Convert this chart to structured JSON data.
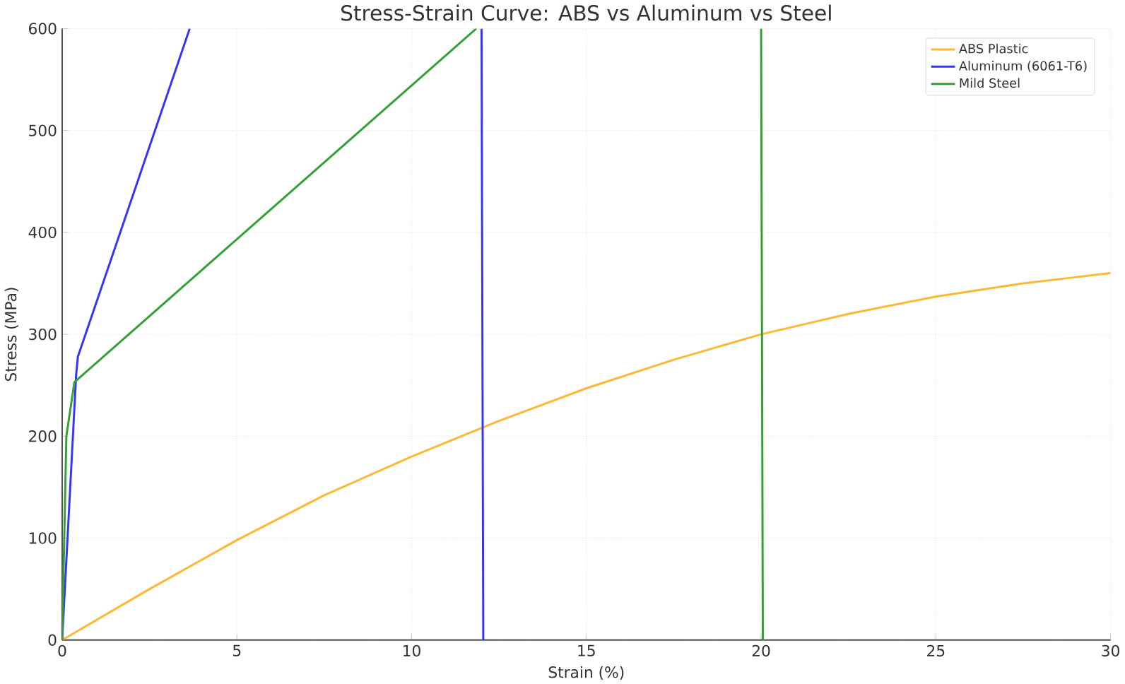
{
  "chart_data": {
    "type": "line",
    "title": "Stress-Strain Curve: ABS vs Aluminum vs Steel",
    "xlabel": "Strain (%)",
    "ylabel": "Stress (MPa)",
    "xlim": [
      0,
      30
    ],
    "ylim": [
      0,
      600
    ],
    "xticks": [
      0,
      5,
      10,
      15,
      20,
      25,
      30
    ],
    "yticks": [
      0,
      100,
      200,
      300,
      400,
      500,
      600
    ],
    "grid": true,
    "legend": "top right",
    "line_style": "solid",
    "marker": "none",
    "series": [
      {
        "name": "ABS Plastic",
        "color": "#ffb833",
        "x": [
          0,
          2.5,
          5,
          7.5,
          10,
          12.5,
          15,
          17.5,
          20,
          22.5,
          25,
          27.5,
          30
        ],
        "values": [
          0,
          50,
          98,
          142,
          180,
          215,
          247,
          275,
          300,
          320,
          337,
          350,
          360
        ]
      },
      {
        "name": "Aluminum (6061-T6)",
        "color": "#3333ff",
        "x": [
          0,
          0.4,
          0.45,
          3.65,
          null,
          12,
          12.05
        ],
        "values": [
          0,
          260,
          278,
          600,
          null,
          600,
          0
        ]
      },
      {
        "name": "Mild Steel",
        "color": "#33a033",
        "x": [
          0,
          0.12,
          0.35,
          11.85,
          null,
          20,
          20.05
        ],
        "values": [
          0,
          200,
          253,
          600,
          null,
          600,
          0
        ]
      }
    ]
  }
}
